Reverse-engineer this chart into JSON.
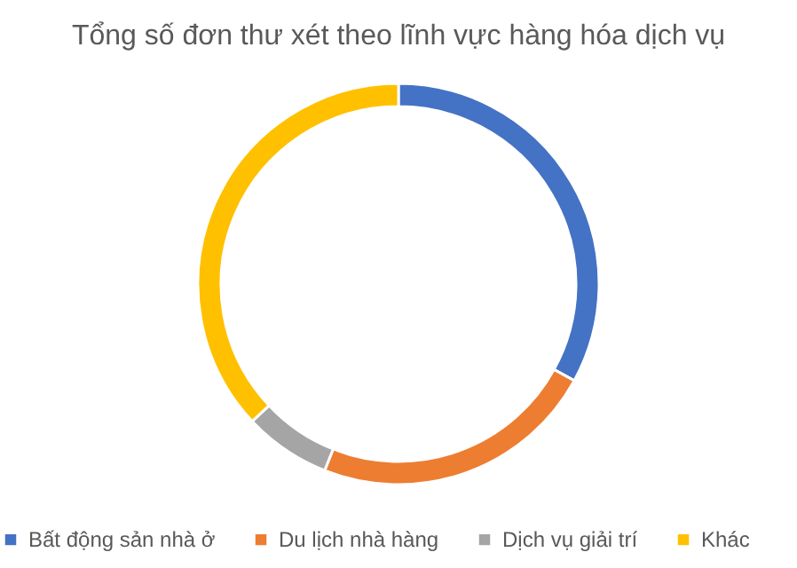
{
  "chart_data": {
    "type": "donut",
    "title": "Tổng số đơn thư xét theo lĩnh vực hàng hóa dịch vụ",
    "categories": [
      "Bất động sản nhà ở",
      "Du lịch nhà hàng",
      "Dịch vụ giải trí",
      "Khác"
    ],
    "values": [
      33,
      23,
      7,
      37
    ],
    "colors": [
      "#4472c4",
      "#ed7d31",
      "#a5a5a5",
      "#ffc000"
    ],
    "legend": "bottom"
  }
}
